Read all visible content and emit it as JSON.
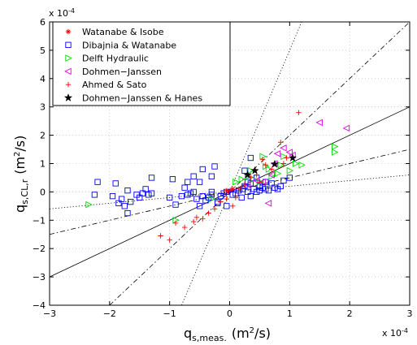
{
  "chart_data": {
    "type": "scatter",
    "xlabel_main": "q",
    "xlabel_sub": "s,meas.",
    "xlabel_unit": "(m",
    "xlabel_unit_sup": "2",
    "xlabel_unit_end": "/s)",
    "ylabel_main": "q",
    "ylabel_sub": "s,CL,r",
    "ylabel_unit": "(m",
    "ylabel_unit_sup": "2",
    "ylabel_unit_end": "/s)",
    "x_exponent": "x 10",
    "x_exponent_pow": "-4",
    "y_exponent": "x 10",
    "y_exponent_pow": "-4",
    "xlim": [
      -3,
      3
    ],
    "ylim": [
      -4,
      6
    ],
    "xticks": [
      -3,
      -2,
      -1,
      0,
      1,
      2,
      3
    ],
    "yticks": [
      -4,
      -3,
      -2,
      -1,
      0,
      1,
      2,
      3,
      4,
      5,
      6
    ],
    "grid": true,
    "legend_position": "top-left",
    "reference_lines": [
      {
        "slope": 1,
        "style": "solid"
      },
      {
        "slope": 2,
        "style": "dashdot"
      },
      {
        "slope": 0.5,
        "style": "dashdot"
      },
      {
        "slope": 5,
        "style": "dotted"
      },
      {
        "slope": 0.2,
        "style": "dotted"
      }
    ],
    "series": [
      {
        "name": "Watanabe & Isobe",
        "marker": "asterisk",
        "color": "#ff0000",
        "points": [
          [
            -0.02,
            0.02
          ],
          [
            0.02,
            0.05
          ],
          [
            0.05,
            0.1
          ]
        ]
      },
      {
        "name": "Dibajnia & Watanabe",
        "marker": "square",
        "color": "#0000ff",
        "points": [
          [
            -2.2,
            0.35
          ],
          [
            -2.25,
            -0.1
          ],
          [
            -1.95,
            -0.15
          ],
          [
            -1.9,
            0.3
          ],
          [
            -1.85,
            -0.4
          ],
          [
            -1.8,
            -0.25
          ],
          [
            -1.75,
            -0.5
          ],
          [
            -1.7,
            -0.75
          ],
          [
            -1.65,
            -0.35
          ],
          [
            -1.55,
            -0.1
          ],
          [
            -1.5,
            -0.2
          ],
          [
            -1.45,
            -0.05
          ],
          [
            -1.4,
            0.1
          ],
          [
            -1.35,
            -0.1
          ],
          [
            -1.3,
            -0.05
          ],
          [
            -1.3,
            0.5
          ],
          [
            -1.0,
            -0.2
          ],
          [
            -0.95,
            0.45
          ],
          [
            -0.9,
            -0.45
          ],
          [
            -0.8,
            -0.15
          ],
          [
            -0.75,
            0.15
          ],
          [
            -0.7,
            -0.1
          ],
          [
            -0.65,
            -0.05
          ],
          [
            -0.6,
            0.0
          ],
          [
            -0.55,
            -0.25
          ],
          [
            -0.5,
            -0.5
          ],
          [
            -0.5,
            0.35
          ],
          [
            -0.45,
            -0.15
          ],
          [
            -0.4,
            -0.3
          ],
          [
            -0.35,
            -0.2
          ],
          [
            -0.3,
            -0.1
          ],
          [
            -0.3,
            0.0
          ],
          [
            -0.25,
            0.9
          ],
          [
            -0.2,
            -0.4
          ],
          [
            -0.15,
            -0.15
          ],
          [
            -0.1,
            -0.05
          ],
          [
            -0.05,
            0.0
          ],
          [
            -0.05,
            -0.5
          ],
          [
            -0.2,
            -0.35
          ],
          [
            0.05,
            -0.1
          ],
          [
            0.1,
            -0.05
          ],
          [
            0.15,
            0.05
          ],
          [
            0.2,
            -0.2
          ],
          [
            0.22,
            0.1
          ],
          [
            0.25,
            0.2
          ],
          [
            0.3,
            0.0
          ],
          [
            0.3,
            0.35
          ],
          [
            0.35,
            0.3
          ],
          [
            0.35,
            -0.15
          ],
          [
            0.4,
            0.1
          ],
          [
            0.45,
            0.0
          ],
          [
            0.45,
            0.5
          ],
          [
            0.5,
            0.05
          ],
          [
            0.5,
            0.2
          ],
          [
            0.55,
            0.15
          ],
          [
            0.6,
            0.35
          ],
          [
            0.6,
            0.1
          ],
          [
            0.65,
            0.05
          ],
          [
            0.7,
            0.3
          ],
          [
            0.75,
            0.15
          ],
          [
            0.8,
            0.1
          ],
          [
            0.85,
            0.2
          ],
          [
            0.9,
            0.4
          ],
          [
            1.0,
            0.5
          ],
          [
            0.35,
            1.2
          ],
          [
            0.25,
            0.75
          ],
          [
            -0.3,
            0.55
          ],
          [
            -0.7,
            0.35
          ],
          [
            -0.45,
            0.8
          ],
          [
            -0.6,
            0.55
          ],
          [
            -1.7,
            0.05
          ]
        ]
      },
      {
        "name": "Delft Hydraulic",
        "marker": "triangle-right",
        "color": "#00dd00",
        "points": [
          [
            -2.35,
            -0.45
          ],
          [
            -0.9,
            -1.0
          ],
          [
            -0.3,
            -0.25
          ],
          [
            0.1,
            0.35
          ],
          [
            0.2,
            0.45
          ],
          [
            0.3,
            0.55
          ],
          [
            0.35,
            0.75
          ],
          [
            0.4,
            0.45
          ],
          [
            0.5,
            0.35
          ],
          [
            0.55,
            1.25
          ],
          [
            0.6,
            0.9
          ],
          [
            0.65,
            0.8
          ],
          [
            0.7,
            0.55
          ],
          [
            0.8,
            0.65
          ],
          [
            0.85,
            0.95
          ],
          [
            0.9,
            1.25
          ],
          [
            1.0,
            0.75
          ],
          [
            1.1,
            1.0
          ],
          [
            1.2,
            0.95
          ],
          [
            1.75,
            1.6
          ],
          [
            1.75,
            1.4
          ]
        ]
      },
      {
        "name": "Dohmen−Janssen",
        "marker": "triangle-left",
        "color": "#dd00dd",
        "points": [
          [
            0.3,
            0.25
          ],
          [
            0.45,
            0.4
          ],
          [
            0.55,
            0.35
          ],
          [
            0.7,
            0.6
          ],
          [
            0.75,
            1.0
          ],
          [
            0.8,
            1.35
          ],
          [
            0.9,
            1.55
          ],
          [
            1.0,
            1.4
          ],
          [
            1.05,
            1.3
          ],
          [
            0.65,
            -0.4
          ],
          [
            1.5,
            2.45
          ],
          [
            1.95,
            2.25
          ]
        ]
      },
      {
        "name": "Ahmed & Sato",
        "marker": "plus",
        "color": "#ff0000",
        "points": [
          [
            -1.15,
            -1.55
          ],
          [
            -1.0,
            -1.7
          ],
          [
            -0.9,
            -1.1
          ],
          [
            -0.75,
            -1.25
          ],
          [
            -0.6,
            -1.05
          ],
          [
            -0.55,
            -0.9
          ],
          [
            -0.45,
            -0.95
          ],
          [
            -0.35,
            -0.75
          ],
          [
            -0.25,
            -0.6
          ],
          [
            -0.15,
            -0.35
          ],
          [
            -0.05,
            -0.25
          ],
          [
            0.05,
            -0.5
          ],
          [
            0.1,
            -0.2
          ],
          [
            0.2,
            0.15
          ],
          [
            0.25,
            0.25
          ],
          [
            0.35,
            0.5
          ],
          [
            0.45,
            0.6
          ],
          [
            0.55,
            1.15
          ],
          [
            0.6,
            0.95
          ],
          [
            0.7,
            0.8
          ],
          [
            0.9,
            1.0
          ],
          [
            1.15,
            2.8
          ],
          [
            0.85,
            1.75
          ],
          [
            0.95,
            1.2
          ],
          [
            0.5,
            0.35
          ],
          [
            0.15,
            0.1
          ],
          [
            -0.05,
            0.05
          ]
        ]
      },
      {
        "name": "Dohmen−Janssen & Hanes",
        "marker": "star",
        "color": "#000000",
        "points": [
          [
            0.3,
            0.6
          ],
          [
            0.42,
            0.75
          ],
          [
            0.75,
            0.98
          ],
          [
            1.05,
            1.2
          ]
        ]
      }
    ]
  }
}
